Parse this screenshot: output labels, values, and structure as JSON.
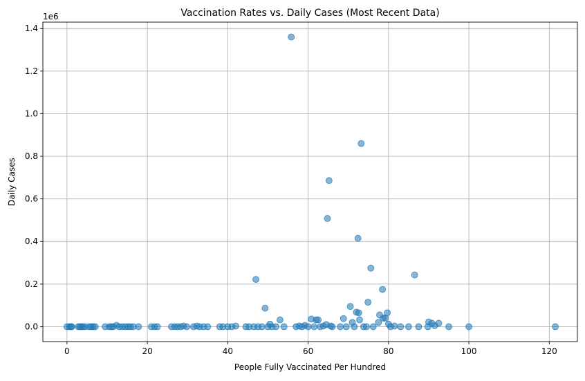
{
  "chart_data": {
    "type": "scatter",
    "title": "Vaccination Rates vs. Daily Cases (Most Recent Data)",
    "xlabel": "People Fully Vaccinated Per Hundred",
    "ylabel": "Daily Cases",
    "y_offset_label": "1e6",
    "xlim": [
      -6,
      127
    ],
    "ylim": [
      -70000,
      1430000
    ],
    "xticks": [
      0,
      20,
      40,
      60,
      80,
      100,
      120
    ],
    "xtick_labels": [
      "0",
      "20",
      "40",
      "60",
      "80",
      "100",
      "120"
    ],
    "yticks": [
      0,
      200000,
      400000,
      600000,
      800000,
      1000000,
      1200000,
      1400000
    ],
    "ytick_labels": [
      "0.0",
      "0.2",
      "0.4",
      "0.6",
      "0.8",
      "1.0",
      "1.2",
      "1.4"
    ],
    "grid": true,
    "marker_color": "#1f77b4",
    "marker_alpha": 0.55,
    "points": [
      {
        "x": 0.0,
        "y": 0
      },
      {
        "x": 0.6,
        "y": 0
      },
      {
        "x": 1.0,
        "y": 0
      },
      {
        "x": 1.2,
        "y": 0
      },
      {
        "x": 2.8,
        "y": 0
      },
      {
        "x": 3.2,
        "y": 0
      },
      {
        "x": 3.6,
        "y": 0
      },
      {
        "x": 4.0,
        "y": 0
      },
      {
        "x": 4.5,
        "y": 0
      },
      {
        "x": 5.5,
        "y": 0
      },
      {
        "x": 6.0,
        "y": 0
      },
      {
        "x": 6.5,
        "y": 0
      },
      {
        "x": 7.0,
        "y": 0
      },
      {
        "x": 9.5,
        "y": 0
      },
      {
        "x": 10.5,
        "y": 0
      },
      {
        "x": 11.0,
        "y": 0
      },
      {
        "x": 11.5,
        "y": 0
      },
      {
        "x": 12.3,
        "y": 6000
      },
      {
        "x": 13.0,
        "y": 0
      },
      {
        "x": 13.8,
        "y": 0
      },
      {
        "x": 14.5,
        "y": 0
      },
      {
        "x": 15.2,
        "y": 0
      },
      {
        "x": 15.8,
        "y": 0
      },
      {
        "x": 16.5,
        "y": 0
      },
      {
        "x": 17.8,
        "y": 0
      },
      {
        "x": 21.0,
        "y": 0
      },
      {
        "x": 21.8,
        "y": 0
      },
      {
        "x": 22.5,
        "y": 0
      },
      {
        "x": 26.0,
        "y": 0
      },
      {
        "x": 26.8,
        "y": 0
      },
      {
        "x": 27.5,
        "y": 0
      },
      {
        "x": 28.3,
        "y": 0
      },
      {
        "x": 29.0,
        "y": 3000
      },
      {
        "x": 29.8,
        "y": 0
      },
      {
        "x": 31.5,
        "y": 0
      },
      {
        "x": 32.3,
        "y": 3000
      },
      {
        "x": 33.0,
        "y": 0
      },
      {
        "x": 34.0,
        "y": 0
      },
      {
        "x": 35.0,
        "y": 0
      },
      {
        "x": 38.0,
        "y": 0
      },
      {
        "x": 38.8,
        "y": 0
      },
      {
        "x": 40.0,
        "y": 0
      },
      {
        "x": 41.0,
        "y": 0
      },
      {
        "x": 42.0,
        "y": 3000
      },
      {
        "x": 44.5,
        "y": 0
      },
      {
        "x": 45.3,
        "y": 0
      },
      {
        "x": 46.5,
        "y": 0
      },
      {
        "x": 47.0,
        "y": 222000
      },
      {
        "x": 47.5,
        "y": 0
      },
      {
        "x": 48.5,
        "y": 0
      },
      {
        "x": 49.3,
        "y": 87000
      },
      {
        "x": 50.0,
        "y": 0
      },
      {
        "x": 50.5,
        "y": 12000
      },
      {
        "x": 51.0,
        "y": 0
      },
      {
        "x": 52.0,
        "y": 0
      },
      {
        "x": 53.0,
        "y": 32000
      },
      {
        "x": 54.0,
        "y": 0
      },
      {
        "x": 55.8,
        "y": 1360000
      },
      {
        "x": 57.0,
        "y": 0
      },
      {
        "x": 57.8,
        "y": 3000
      },
      {
        "x": 58.5,
        "y": 0
      },
      {
        "x": 59.2,
        "y": 6000
      },
      {
        "x": 60.0,
        "y": 0
      },
      {
        "x": 60.8,
        "y": 36000
      },
      {
        "x": 61.5,
        "y": 0
      },
      {
        "x": 62.0,
        "y": 32000
      },
      {
        "x": 62.5,
        "y": 32000
      },
      {
        "x": 63.0,
        "y": 0
      },
      {
        "x": 63.8,
        "y": 3000
      },
      {
        "x": 64.5,
        "y": 10000
      },
      {
        "x": 64.8,
        "y": 508000
      },
      {
        "x": 65.2,
        "y": 686000
      },
      {
        "x": 65.6,
        "y": 3000
      },
      {
        "x": 66.0,
        "y": 0
      },
      {
        "x": 68.0,
        "y": 0
      },
      {
        "x": 68.8,
        "y": 38000
      },
      {
        "x": 69.5,
        "y": 0
      },
      {
        "x": 70.5,
        "y": 95000
      },
      {
        "x": 71.0,
        "y": 20000
      },
      {
        "x": 71.5,
        "y": 0
      },
      {
        "x": 72.0,
        "y": 68000
      },
      {
        "x": 72.4,
        "y": 415000
      },
      {
        "x": 72.6,
        "y": 65000
      },
      {
        "x": 72.8,
        "y": 32000
      },
      {
        "x": 73.2,
        "y": 860000
      },
      {
        "x": 73.8,
        "y": 0
      },
      {
        "x": 74.5,
        "y": 0
      },
      {
        "x": 74.9,
        "y": 115000
      },
      {
        "x": 75.6,
        "y": 275000
      },
      {
        "x": 76.2,
        "y": 0
      },
      {
        "x": 77.5,
        "y": 20000
      },
      {
        "x": 77.8,
        "y": 55000
      },
      {
        "x": 78.5,
        "y": 175000
      },
      {
        "x": 78.7,
        "y": 40000
      },
      {
        "x": 79.2,
        "y": 40000
      },
      {
        "x": 79.7,
        "y": 65000
      },
      {
        "x": 80.0,
        "y": 12000
      },
      {
        "x": 80.5,
        "y": 0
      },
      {
        "x": 81.5,
        "y": 3000
      },
      {
        "x": 83.0,
        "y": 0
      },
      {
        "x": 85.0,
        "y": 0
      },
      {
        "x": 86.5,
        "y": 243000
      },
      {
        "x": 87.5,
        "y": 0
      },
      {
        "x": 89.8,
        "y": 0
      },
      {
        "x": 90.0,
        "y": 22000
      },
      {
        "x": 90.8,
        "y": 16000
      },
      {
        "x": 91.5,
        "y": 5000
      },
      {
        "x": 92.5,
        "y": 16000
      },
      {
        "x": 95.0,
        "y": 0
      },
      {
        "x": 100.0,
        "y": 0
      },
      {
        "x": 121.5,
        "y": 0
      }
    ]
  }
}
